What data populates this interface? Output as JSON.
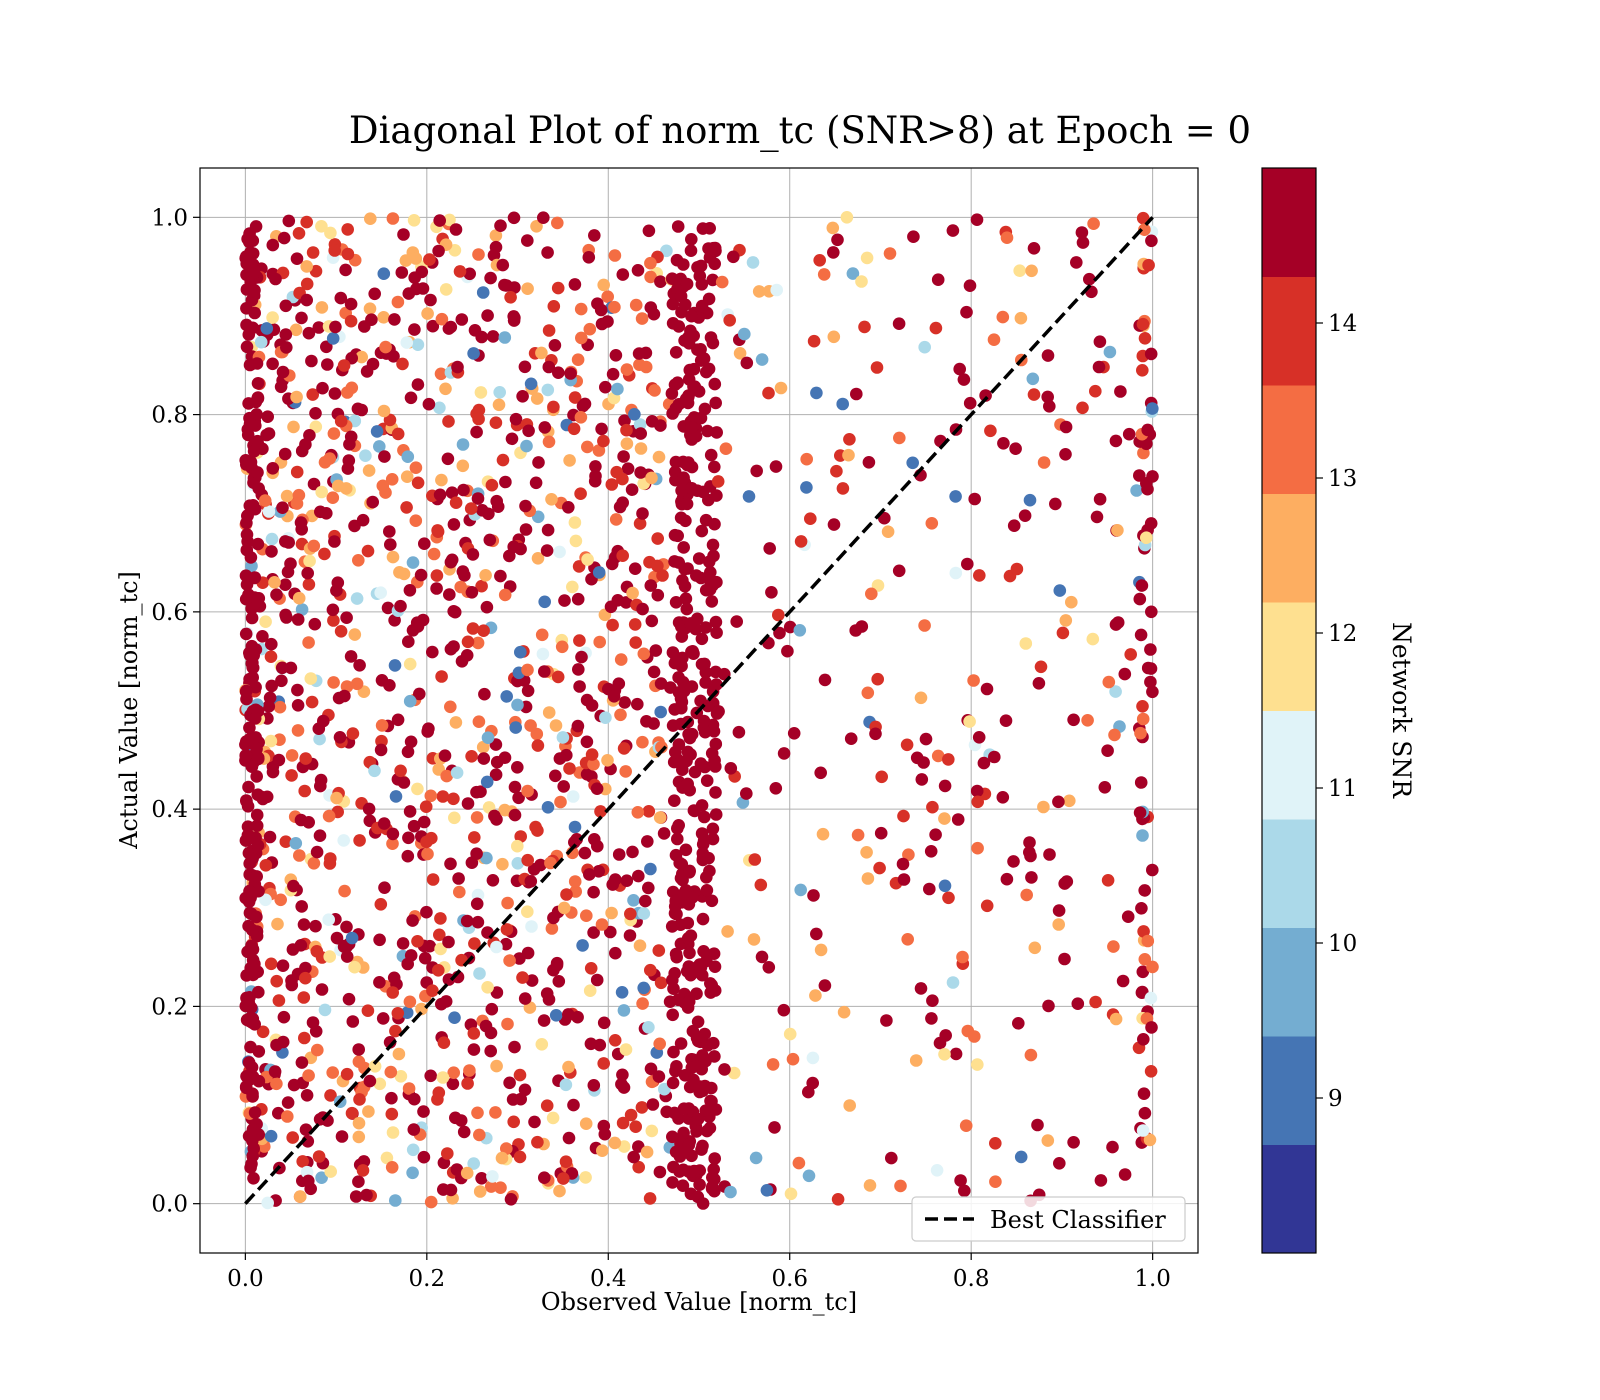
{
  "chart_data": {
    "type": "scatter",
    "title": "Diagonal Plot of norm_tc (SNR>8) at Epoch = 0",
    "xlabel": "Observed Value [norm_tc]",
    "ylabel": "Actual Value [norm_tc]",
    "xlim": [
      -0.05,
      1.05
    ],
    "ylim": [
      -0.05,
      1.05
    ],
    "xticks": [
      "0.0",
      "0.2",
      "0.4",
      "0.6",
      "0.8",
      "1.0"
    ],
    "yticks": [
      "0.0",
      "0.2",
      "0.4",
      "0.6",
      "0.8",
      "1.0"
    ],
    "grid": true,
    "legend": {
      "placement": "lower-right",
      "entries": [
        "Best Classifier"
      ]
    },
    "reference_line": {
      "name": "Best Classifier",
      "style": "dashed",
      "color": "#000000",
      "x": [
        0,
        1
      ],
      "y": [
        0,
        1
      ]
    },
    "colorbar": {
      "label": "Network SNR",
      "range": [
        8,
        15
      ],
      "ticks": [
        "9",
        "10",
        "11",
        "12",
        "13",
        "14"
      ],
      "bins": [
        {
          "from": 8.0,
          "to": 8.7,
          "color": "#313695"
        },
        {
          "from": 8.7,
          "to": 9.4,
          "color": "#4575b4"
        },
        {
          "from": 9.4,
          "to": 10.1,
          "color": "#74add1"
        },
        {
          "from": 10.1,
          "to": 10.8,
          "color": "#abd9e9"
        },
        {
          "from": 10.8,
          "to": 11.5,
          "color": "#e0f3f8"
        },
        {
          "from": 11.5,
          "to": 12.2,
          "color": "#fee090"
        },
        {
          "from": 12.2,
          "to": 12.9,
          "color": "#fdae61"
        },
        {
          "from": 12.9,
          "to": 13.6,
          "color": "#f46d43"
        },
        {
          "from": 13.6,
          "to": 14.3,
          "color": "#d73027"
        },
        {
          "from": 14.3,
          "to": 15.0,
          "color": "#a50026"
        }
      ]
    },
    "point_clusters": [
      {
        "x_range": [
          0.0,
          0.02
        ],
        "y_range": [
          0.05,
          1.0
        ],
        "dominant_snr": 14.8,
        "density": "very high"
      },
      {
        "x_range": [
          0.0,
          0.5
        ],
        "y_range": [
          0.0,
          1.0
        ],
        "dominant_snr": 14.0,
        "density": "high"
      },
      {
        "x_range": [
          0.47,
          0.52
        ],
        "y_range": [
          0.0,
          1.0
        ],
        "dominant_snr": 14.8,
        "density": "very high"
      },
      {
        "x_range": [
          0.52,
          1.0
        ],
        "y_range": [
          0.0,
          1.0
        ],
        "dominant_snr": 13.5,
        "density": "sparse"
      },
      {
        "x_range": [
          0.98,
          1.0
        ],
        "y_range": [
          0.2,
          1.0
        ],
        "dominant_snr": 14.5,
        "density": "medium"
      }
    ],
    "n_points_rendered": 2200
  }
}
